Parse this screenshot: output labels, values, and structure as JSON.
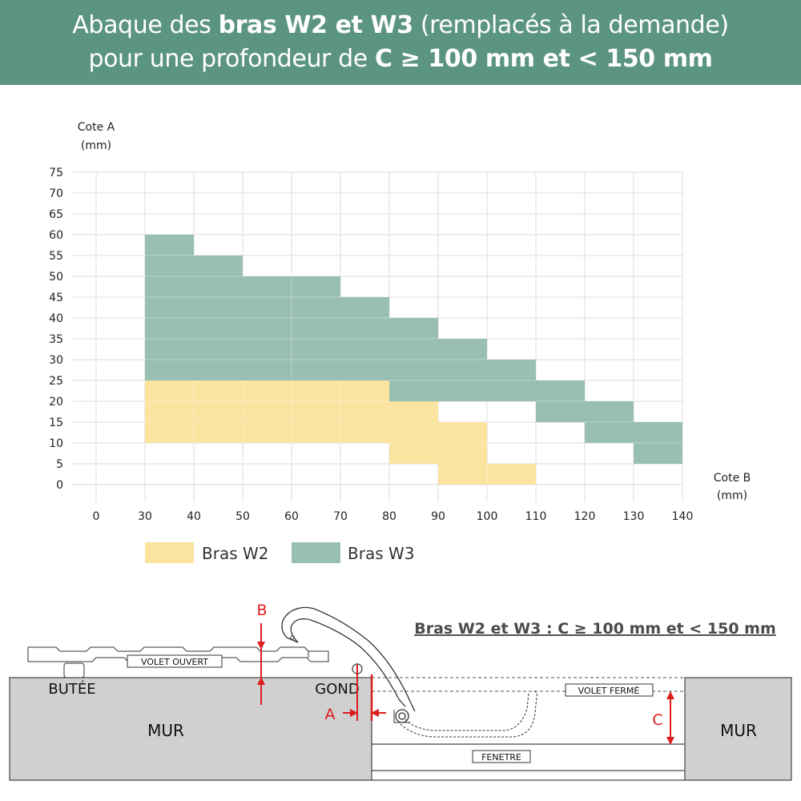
{
  "header": {
    "line1_a": "Abaque des ",
    "line1_b": "bras W2 et W3",
    "line1_c": " (remplacés à la demande)",
    "line2_a": "pour une profondeur de ",
    "line2_b": "C ≥ 100 mm et < 150 mm"
  },
  "colors": {
    "header": "#5c9484",
    "w2": "#fbe3a0",
    "w3": "#99bfb2",
    "red": "#dd1c1c",
    "wall": "#d0d0d0"
  },
  "chart_data": {
    "type": "heatmap",
    "xlabel": [
      "Cote B",
      "(mm)"
    ],
    "ylabel": [
      "Cote A",
      "(mm)"
    ],
    "x_ticks": [
      0,
      30,
      40,
      50,
      60,
      70,
      80,
      90,
      100,
      110,
      120,
      130,
      140
    ],
    "y_ticks": [
      0,
      5,
      10,
      15,
      20,
      25,
      30,
      35,
      40,
      45,
      50,
      55,
      60,
      65,
      70,
      75
    ],
    "xlim": [
      0,
      140
    ],
    "ylim": [
      0,
      75
    ],
    "grid": true,
    "legend": [
      {
        "name": "Bras W2",
        "key": "w2"
      },
      {
        "name": "Bras W3",
        "key": "w3"
      }
    ],
    "series": [
      {
        "name": "Bras W2",
        "key": "w2",
        "regions": [
          {
            "x": [
              30,
              80
            ],
            "y": [
              10,
              25
            ]
          },
          {
            "x": [
              80,
              90
            ],
            "y": [
              5,
              20
            ]
          },
          {
            "x": [
              90,
              100
            ],
            "y": [
              5,
              15
            ]
          },
          {
            "x": [
              90,
              110
            ],
            "y": [
              0,
              5
            ]
          }
        ]
      },
      {
        "name": "Bras W3",
        "key": "w3",
        "regions": [
          {
            "x": [
              30,
              40
            ],
            "y": [
              25,
              60
            ]
          },
          {
            "x": [
              40,
              50
            ],
            "y": [
              25,
              55
            ]
          },
          {
            "x": [
              50,
              70
            ],
            "y": [
              25,
              50
            ]
          },
          {
            "x": [
              70,
              80
            ],
            "y": [
              25,
              45
            ]
          },
          {
            "x": [
              80,
              90
            ],
            "y": [
              20,
              40
            ]
          },
          {
            "x": [
              90,
              100
            ],
            "y": [
              20,
              35
            ]
          },
          {
            "x": [
              100,
              110
            ],
            "y": [
              20,
              30
            ]
          },
          {
            "x": [
              110,
              120
            ],
            "y": [
              15,
              25
            ]
          },
          {
            "x": [
              120,
              130
            ],
            "y": [
              10,
              20
            ]
          },
          {
            "x": [
              130,
              140
            ],
            "y": [
              5,
              15
            ]
          }
        ]
      }
    ]
  },
  "diagram": {
    "title": "Bras W2 et W3 : C ≥ 100 mm et < 150 mm",
    "label_volet_ouvert": "VOLET OUVERT",
    "label_butee": "BUTÉE",
    "label_gond": "GOND",
    "label_mur_left": "MUR",
    "label_mur_right": "MUR",
    "label_volet_ferme": "VOLET FERMÉ",
    "label_fenetre": "FENETRE",
    "label_a": "A",
    "label_b": "B",
    "label_c": "C"
  }
}
